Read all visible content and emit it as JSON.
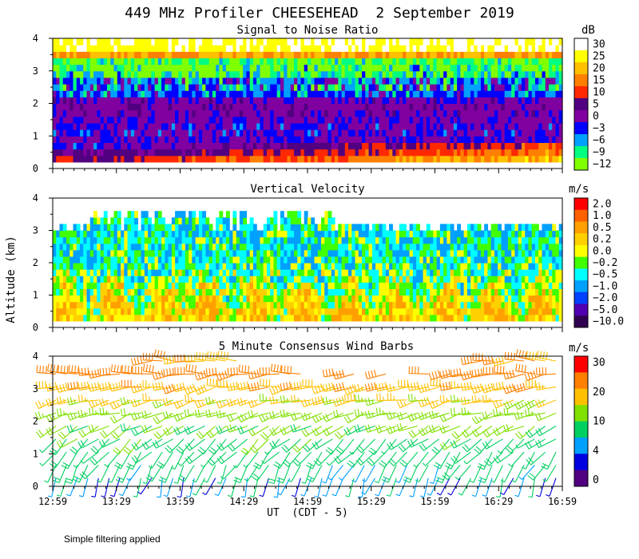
{
  "figure": {
    "title": "449 MHz Profiler CHEESEHEAD  2 September 2019",
    "footnote": "Simple filtering applied",
    "ylabel": "Altitude (km)",
    "xlabel": "UT  (CDT - 5)"
  },
  "chart_data": [
    {
      "type": "heatmap",
      "title": "Signal to Noise Ratio",
      "unit": "dB",
      "x_ticks": [
        "12:59",
        "13:29",
        "13:59",
        "14:29",
        "14:59",
        "15:29",
        "15:59",
        "16:29",
        "16:59"
      ],
      "x_range_hours": [
        12.983,
        16.983
      ],
      "ylim": [
        0,
        4
      ],
      "y_ticks": [
        "0",
        "1",
        "2",
        "3",
        "4"
      ],
      "colorbar_labels": [
        "30",
        "25",
        "20",
        "15",
        "10",
        "5",
        "0",
        "−3",
        "−6",
        "−9",
        "−12"
      ],
      "colorbar_colors": [
        "#ffffff",
        "#ffff00",
        "#ffc000",
        "#ff8000",
        "#ff2800",
        "#500080",
        "#8000a0",
        "#0000ff",
        "#00a0ff",
        "#00ff80",
        "#80ff00"
      ],
      "profile_km": [
        0.3,
        0.5,
        0.7,
        0.9,
        1.1,
        1.3,
        1.5,
        1.7,
        1.9,
        2.1,
        2.3,
        2.5,
        2.7,
        2.9,
        3.1,
        3.3,
        3.5,
        3.7,
        3.9
      ],
      "profile_snr_db": [
        13,
        8,
        3,
        1,
        0,
        0,
        1,
        2,
        3,
        2,
        -3,
        -4,
        -3,
        -8,
        -10,
        -9,
        20,
        30,
        30
      ]
    },
    {
      "type": "heatmap",
      "title": "Vertical Velocity",
      "unit": "m/s",
      "x_ticks": [
        "12:59",
        "13:29",
        "13:59",
        "14:29",
        "14:59",
        "15:29",
        "15:59",
        "16:29",
        "16:59"
      ],
      "ylim": [
        0,
        4
      ],
      "y_ticks": [
        "0",
        "1",
        "2",
        "3",
        "4"
      ],
      "colorbar_labels": [
        "2.0",
        "1.0",
        "0.5",
        "0.2",
        "0.0",
        "−0.2",
        "−0.5",
        "−1.0",
        "−2.0",
        "−5.0",
        "−10.0"
      ],
      "colorbar_colors": [
        "#ff0000",
        "#ff6000",
        "#ffa000",
        "#ffd000",
        "#ffff00",
        "#40ff00",
        "#00ffff",
        "#00a0ff",
        "#0040ff",
        "#5000b0",
        "#300050"
      ],
      "profile_km": [
        0.5,
        1.0,
        1.5,
        2.0,
        2.5,
        3.0,
        3.5
      ],
      "profile_w_ms": [
        0.3,
        0.1,
        -0.1,
        -0.3,
        -0.4,
        -0.3,
        -0.4
      ]
    },
    {
      "type": "scatter",
      "title": "5 Minute Consensus Wind Barbs",
      "unit": "m/s",
      "x_ticks": [
        "12:59",
        "13:29",
        "13:59",
        "14:29",
        "14:59",
        "15:29",
        "15:59",
        "16:29",
        "16:59"
      ],
      "ylim": [
        0,
        4
      ],
      "y_ticks": [
        "0",
        "1",
        "2",
        "3",
        "4"
      ],
      "colorbar_labels": [
        "30",
        "20",
        "10",
        "4",
        "0"
      ],
      "colorbar_colors": [
        "#ff0000",
        "#ff8000",
        "#ffc000",
        "#80e000",
        "#00d060",
        "#00a0ff",
        "#0000e0",
        "#500080"
      ],
      "profile_km": [
        0.4,
        0.8,
        1.2,
        1.6,
        2.0,
        2.4,
        2.8,
        3.2,
        3.6,
        4.0
      ],
      "profile_speed_ms": [
        5,
        7,
        8,
        9,
        11,
        13,
        16,
        19,
        22,
        20
      ],
      "profile_dir_deg": [
        200,
        210,
        220,
        230,
        240,
        250,
        255,
        260,
        265,
        270
      ]
    }
  ]
}
